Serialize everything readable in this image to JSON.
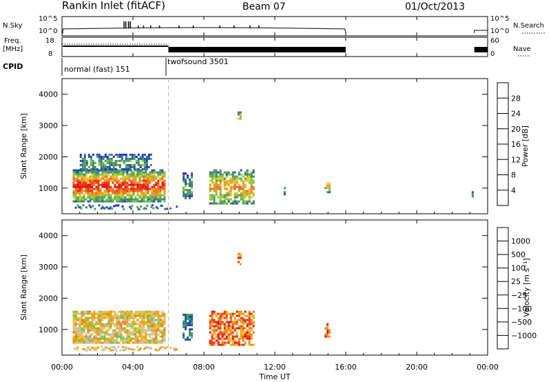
{
  "header": {
    "station": "Rankin Inlet (fitACF)",
    "beam": "Beam 07",
    "date": "01/Oct/2013"
  },
  "summary_panels": {
    "nsky_label": "N.Sky",
    "nsky_ticks": [
      "10^5",
      "10^0"
    ],
    "nsearch_label": "N.Search",
    "nsearch_ticks": [
      "10^5",
      "10^0"
    ],
    "freq_label": "Freq.",
    "freq_unit": "[MHz]",
    "freq_ticks": [
      "18",
      "8"
    ],
    "nave_label": "Nave",
    "nave_ticks": [
      "60",
      "0"
    ],
    "cpid_label": "CPID",
    "cpid_segments": [
      {
        "label": "normal (fast) 151",
        "start": 0,
        "end": 6
      },
      {
        "label": "twofsound 3501",
        "start": 6,
        "end": 24
      }
    ]
  },
  "colors": {
    "power_scale": [
      "#2020e0",
      "#1f4fa8",
      "#3f7f6f",
      "#4aa05a",
      "#7cc93a",
      "#f0c020",
      "#f09020",
      "#f06818",
      "#f03010",
      "#e01010"
    ],
    "velocity_scale": [
      "#e01010",
      "#f03010",
      "#f07a1a",
      "#f0a000",
      "#f0c040",
      "#c0c0c0",
      "#5ccf30",
      "#3aa04a",
      "#2e7c80",
      "#2050b0",
      "#1f3f9f"
    ],
    "dashed_line": "#bbbbbb"
  },
  "chart_data": [
    {
      "type": "heatmap",
      "panel": "power",
      "ylabel": "Slant Range [km]",
      "xlim": [
        0,
        24
      ],
      "ylim": [
        180,
        4500
      ],
      "yticks": [
        "1000",
        "2000",
        "3000",
        "4000"
      ],
      "colorbar_label": "Power [dB]",
      "colorbar_ticks": [
        "28",
        "24",
        "20",
        "16",
        "12",
        "8",
        "4"
      ],
      "regions": [
        {
          "x": [
            0.6,
            5.8
          ],
          "y": [
            600,
            1600
          ],
          "level": "high"
        },
        {
          "x": [
            1.0,
            5.0
          ],
          "y": [
            1600,
            2100
          ],
          "level": "low"
        },
        {
          "x": [
            6.8,
            7.3
          ],
          "y": [
            650,
            1500
          ],
          "level": "low"
        },
        {
          "x": [
            8.3,
            10.8
          ],
          "y": [
            500,
            1600
          ],
          "level": "mid"
        },
        {
          "x": [
            9.9,
            10.1
          ],
          "y": [
            3100,
            3450
          ],
          "level": "mid"
        },
        {
          "x": [
            12.5,
            12.6
          ],
          "y": [
            800,
            1100
          ],
          "level": "low"
        },
        {
          "x": [
            14.8,
            15.1
          ],
          "y": [
            900,
            1300
          ],
          "level": "mid"
        },
        {
          "x": [
            23.1,
            23.2
          ],
          "y": [
            700,
            900
          ],
          "level": "low"
        }
      ]
    },
    {
      "type": "heatmap",
      "panel": "velocity",
      "ylabel": "Slant Range [km]",
      "xlabel": "Time UT",
      "xlim": [
        0,
        24
      ],
      "ylim": [
        180,
        4500
      ],
      "yticks": [
        "1000",
        "2000",
        "3000",
        "4000"
      ],
      "xticks": [
        "00:00",
        "04:00",
        "08:00",
        "12:00",
        "16:00",
        "20:00",
        "00:00"
      ],
      "colorbar_label": "Velocity [m s⁻¹]",
      "colorbar_ticks": [
        "1000",
        "500",
        "100",
        "25",
        "−25",
        "−100",
        "−500",
        "−1000"
      ],
      "regions": [
        {
          "x": [
            0.6,
            5.8
          ],
          "y": [
            600,
            1600
          ],
          "level": "mixed"
        },
        {
          "x": [
            6.8,
            7.3
          ],
          "y": [
            650,
            1500
          ],
          "level": "positive"
        },
        {
          "x": [
            8.3,
            10.8
          ],
          "y": [
            500,
            1600
          ],
          "level": "negative"
        },
        {
          "x": [
            9.9,
            10.1
          ],
          "y": [
            3100,
            3450
          ],
          "level": "negative"
        },
        {
          "x": [
            14.8,
            15.1
          ],
          "y": [
            800,
            1200
          ],
          "level": "negative"
        }
      ]
    }
  ],
  "footer": {
    "xlabel": "Time UT"
  }
}
